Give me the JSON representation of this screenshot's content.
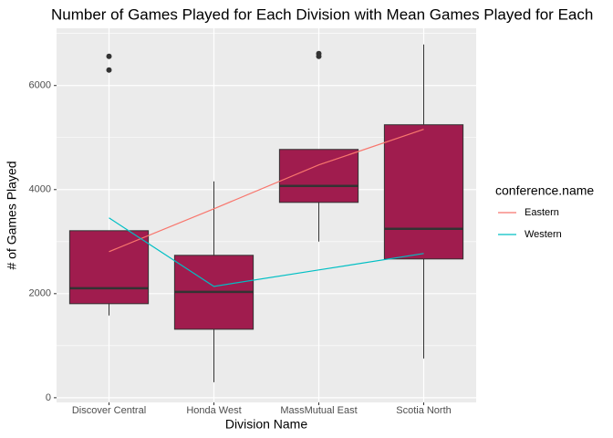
{
  "chart_data": {
    "type": "boxplot",
    "title": "Number of Games Played for Each Division with Mean Games Played for Each",
    "xlabel": "Division Name",
    "ylabel": "# of Games Played",
    "categories": [
      "Discover Central",
      "Honda West",
      "MassMutual East",
      "Scotia North"
    ],
    "box_color": "#A01C4E",
    "boxes": [
      {
        "min": 1580,
        "q1": 1807,
        "median": 2105,
        "q3": 3210,
        "max": 3210,
        "outliers": [
          6561,
          6298
        ]
      },
      {
        "min": 298,
        "q1": 1316,
        "median": 2035,
        "q3": 2737,
        "max": 4158,
        "outliers": []
      },
      {
        "min": 3000,
        "q1": 3754,
        "median": 4070,
        "q3": 4772,
        "max": 4772,
        "outliers": [
          6614,
          6561
        ]
      },
      {
        "min": 754,
        "q1": 2667,
        "median": 3246,
        "q3": 5246,
        "max": 6789,
        "outliers": []
      }
    ],
    "legend_title": "conference.name",
    "series": [
      {
        "name": "Eastern",
        "color": "#F8766D",
        "values": [
          2807,
          3632,
          4474,
          5158
        ]
      },
      {
        "name": "Western",
        "color": "#00BFC4",
        "values": [
          3456,
          2140,
          2456,
          2772
        ]
      }
    ],
    "ylim": [
      -90,
      7100
    ],
    "yticks": [
      0,
      2000,
      4000,
      6000
    ],
    "yminor": [
      1000,
      3000,
      5000,
      7000
    ],
    "grid": true,
    "legend": "right"
  }
}
